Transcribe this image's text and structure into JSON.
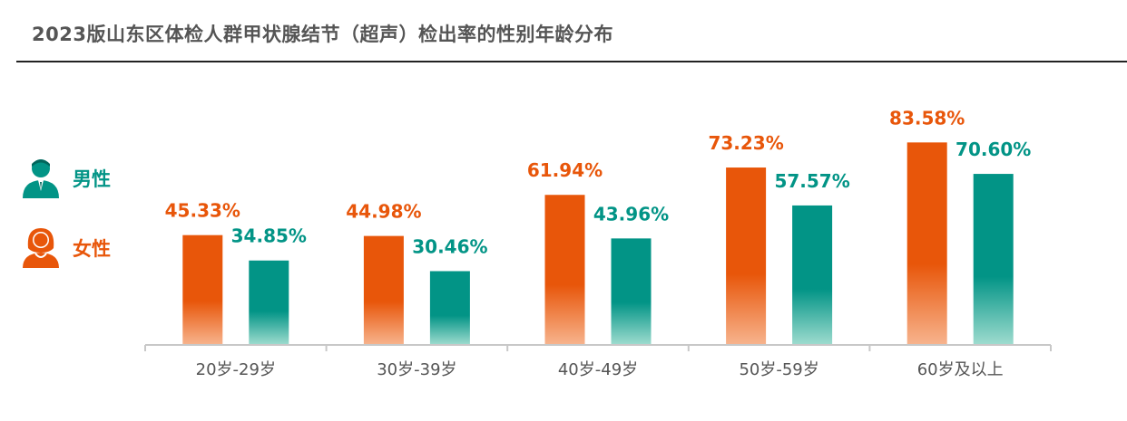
{
  "title": "2023版山东区体检人群甲状腺结节（超声）检出率的性别年龄分布",
  "legend": {
    "male": {
      "label": "男性",
      "icon": "male-person-icon",
      "color": "#029486"
    },
    "female": {
      "label": "女性",
      "icon": "female-person-icon",
      "color": "#E8560A"
    }
  },
  "chart_data": {
    "type": "bar",
    "title": "2023版山东区体检人群甲状腺结节（超声）检出率的性别年龄分布",
    "xlabel": "",
    "ylabel": "",
    "categories": [
      "20岁-29岁",
      "30岁-39岁",
      "40岁-49岁",
      "50岁-59岁",
      "60岁及以上"
    ],
    "series": [
      {
        "name": "女性",
        "color": "#E8560A",
        "values": [
          45.33,
          44.98,
          61.94,
          73.23,
          83.58
        ],
        "labels": [
          "45.33%",
          "44.98%",
          "61.94%",
          "73.23%",
          "83.58%"
        ]
      },
      {
        "name": "男性",
        "color": "#029486",
        "values": [
          34.85,
          30.46,
          43.96,
          57.57,
          70.6
        ],
        "labels": [
          "34.85%",
          "30.46%",
          "43.96%",
          "57.57%",
          "70.60%"
        ]
      }
    ],
    "ylim": [
      0,
      100
    ],
    "grid": false,
    "legend_position": "left"
  }
}
